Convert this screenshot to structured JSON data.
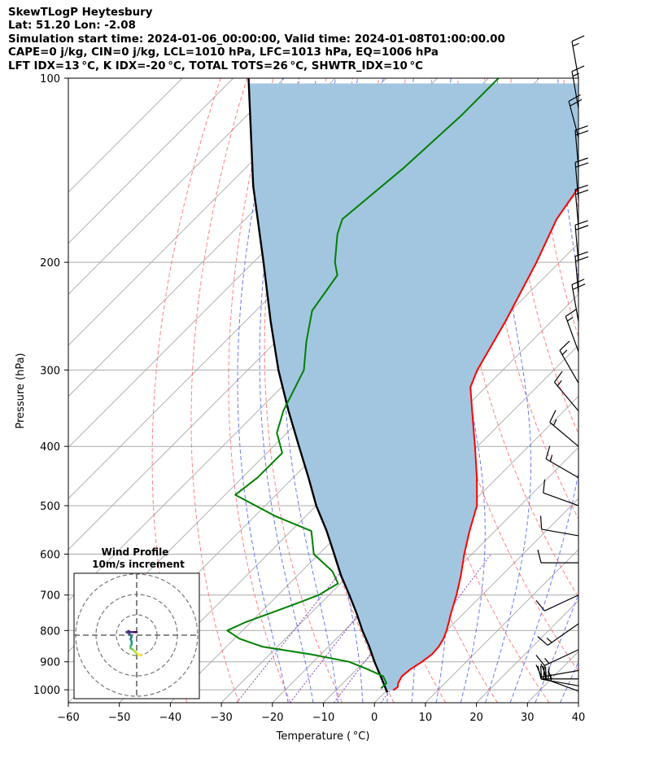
{
  "header": {
    "line1": "SkewTLogP Heytesbury",
    "line2": "Lat: 51.20   Lon: -2.08",
    "line3": "Simulation start time: 2024-01-06_00:00:00, Valid time: 2024-01-08T01:00:00.00",
    "line4": "CAPE=0 j/kg, CIN=0 j/kg, LCL=1010 hPa, LFC=1013 hPa, EQ=1006 hPa",
    "line5": "LFT IDX=13 °C, K IDX=-20 °C, TOTAL TOTS=26 °C, SHWTR_IDX=10 °C"
  },
  "chart_data": {
    "type": "line",
    "subtype": "skew-t log-p",
    "xlabel": "Temperature ( °C)",
    "ylabel": "Pressure (hPa)",
    "xlim": [
      -60,
      40
    ],
    "ylim": [
      1050,
      100
    ],
    "y_scale": "log",
    "grid": true,
    "x_ticks": [
      -60,
      -50,
      -40,
      -30,
      -20,
      -10,
      0,
      10,
      20,
      30,
      40
    ],
    "y_ticks": [
      100,
      200,
      300,
      400,
      500,
      600,
      700,
      800,
      900,
      1000
    ],
    "colors": {
      "temperature": "#ff0000",
      "dewpoint": "#008000",
      "parcel": "#000000",
      "cape_fill": "#a2c6e0",
      "dry_adiabats": "#ff6b6b",
      "moist_adiabats": "#5a6cf0",
      "mixing_ratio": "#7b2fbf",
      "isotherms": "#a9a9a9"
    },
    "series": [
      {
        "points": [
          [
            1002,
            1.2
          ],
          [
            990,
            1.5
          ],
          [
            975,
            0.8
          ],
          [
            950,
            0.2
          ],
          [
            925,
            0.5
          ],
          [
            900,
            1.3
          ],
          [
            875,
            1.8
          ],
          [
            850,
            1.6
          ],
          [
            825,
            1.0
          ],
          [
            800,
            0.0
          ],
          [
            775,
            -1.2
          ],
          [
            750,
            -2.5
          ],
          [
            700,
            -5.0
          ],
          [
            650,
            -8.0
          ],
          [
            600,
            -11.5
          ],
          [
            550,
            -15.0
          ],
          [
            500,
            -18.5
          ],
          [
            450,
            -24.0
          ],
          [
            400,
            -30.5
          ],
          [
            350,
            -38.0
          ],
          [
            320,
            -43.0
          ],
          [
            300,
            -45.0
          ],
          [
            250,
            -49.0
          ],
          [
            200,
            -54.5
          ],
          [
            170,
            -59.0
          ],
          [
            150,
            -61.0
          ],
          [
            130,
            -64.0
          ],
          [
            110,
            -66.0
          ],
          [
            100,
            -66.5
          ]
        ]
      },
      {
        "points": [
          [
            995,
            -1.5
          ],
          [
            975,
            -1.5
          ],
          [
            950,
            -3.5
          ],
          [
            925,
            -8.0
          ],
          [
            900,
            -13.0
          ],
          [
            875,
            -22.0
          ],
          [
            850,
            -33.0
          ],
          [
            825,
            -39.0
          ],
          [
            800,
            -43.0
          ],
          [
            775,
            -41.0
          ],
          [
            750,
            -38.0
          ],
          [
            725,
            -35.0
          ],
          [
            700,
            -32.0
          ],
          [
            670,
            -30.5
          ],
          [
            640,
            -34.0
          ],
          [
            600,
            -41.0
          ],
          [
            550,
            -46.0
          ],
          [
            520,
            -56.0
          ],
          [
            480,
            -68.0
          ],
          [
            450,
            -67.0
          ],
          [
            410,
            -67.0
          ],
          [
            380,
            -72.0
          ],
          [
            350,
            -75.0
          ],
          [
            300,
            -79.0
          ],
          [
            270,
            -84.0
          ],
          [
            240,
            -89.0
          ],
          [
            210,
            -91.0
          ],
          [
            200,
            -94.0
          ],
          [
            180,
            -99.0
          ],
          [
            170,
            -101.0
          ],
          [
            140,
            -99.0
          ],
          [
            115,
            -98.0
          ],
          [
            100,
            -98.0
          ]
        ]
      },
      {
        "points": [
          [
            1010,
            0.5
          ],
          [
            950,
            -4.0
          ],
          [
            900,
            -8.0
          ],
          [
            850,
            -12.0
          ],
          [
            800,
            -16.5
          ],
          [
            750,
            -21.0
          ],
          [
            700,
            -26.0
          ],
          [
            650,
            -31.5
          ],
          [
            600,
            -37.0
          ],
          [
            550,
            -43.0
          ],
          [
            500,
            -50.0
          ],
          [
            450,
            -57.0
          ],
          [
            400,
            -65.0
          ],
          [
            350,
            -74.0
          ],
          [
            300,
            -84.0
          ],
          [
            250,
            -95.0
          ],
          [
            200,
            -108.0
          ],
          [
            150,
            -125.0
          ],
          [
            100,
            -147.0
          ]
        ]
      }
    ],
    "inset": {
      "title": "Wind Profile",
      "subtitle": "10m/s increment",
      "hodograph_u_v": [
        [
          2,
          -10
        ],
        [
          1,
          -9.5
        ],
        [
          0,
          -9
        ],
        [
          -1,
          -8
        ],
        [
          -2,
          -7
        ],
        [
          -3,
          -6.5
        ],
        [
          -3,
          -5.5
        ],
        [
          -2.5,
          -4.5
        ],
        [
          -2.5,
          -3
        ],
        [
          -3,
          -2
        ],
        [
          -2.5,
          -1
        ],
        [
          -3,
          0
        ],
        [
          -4,
          1
        ],
        [
          -5,
          1.5
        ],
        [
          -4,
          2
        ],
        [
          -3,
          1.5
        ],
        [
          -1,
          1.5
        ],
        [
          0,
          1.5
        ]
      ]
    }
  },
  "wind_barbs": {
    "pressures": [
      100,
      112,
      125,
      140,
      158,
      175,
      200,
      225,
      250,
      280,
      315,
      350,
      400,
      450,
      500,
      560,
      620,
      700,
      780,
      860,
      930,
      960,
      985,
      1005
    ],
    "speed_kt": [
      15,
      15,
      20,
      20,
      20,
      20,
      20,
      20,
      20,
      15,
      15,
      15,
      15,
      15,
      10,
      10,
      10,
      10,
      15,
      15,
      20,
      25,
      25,
      20
    ],
    "direction_deg": [
      350,
      350,
      345,
      355,
      355,
      355,
      355,
      355,
      350,
      340,
      330,
      320,
      310,
      300,
      290,
      280,
      270,
      245,
      235,
      245,
      260,
      270,
      280,
      290
    ]
  }
}
